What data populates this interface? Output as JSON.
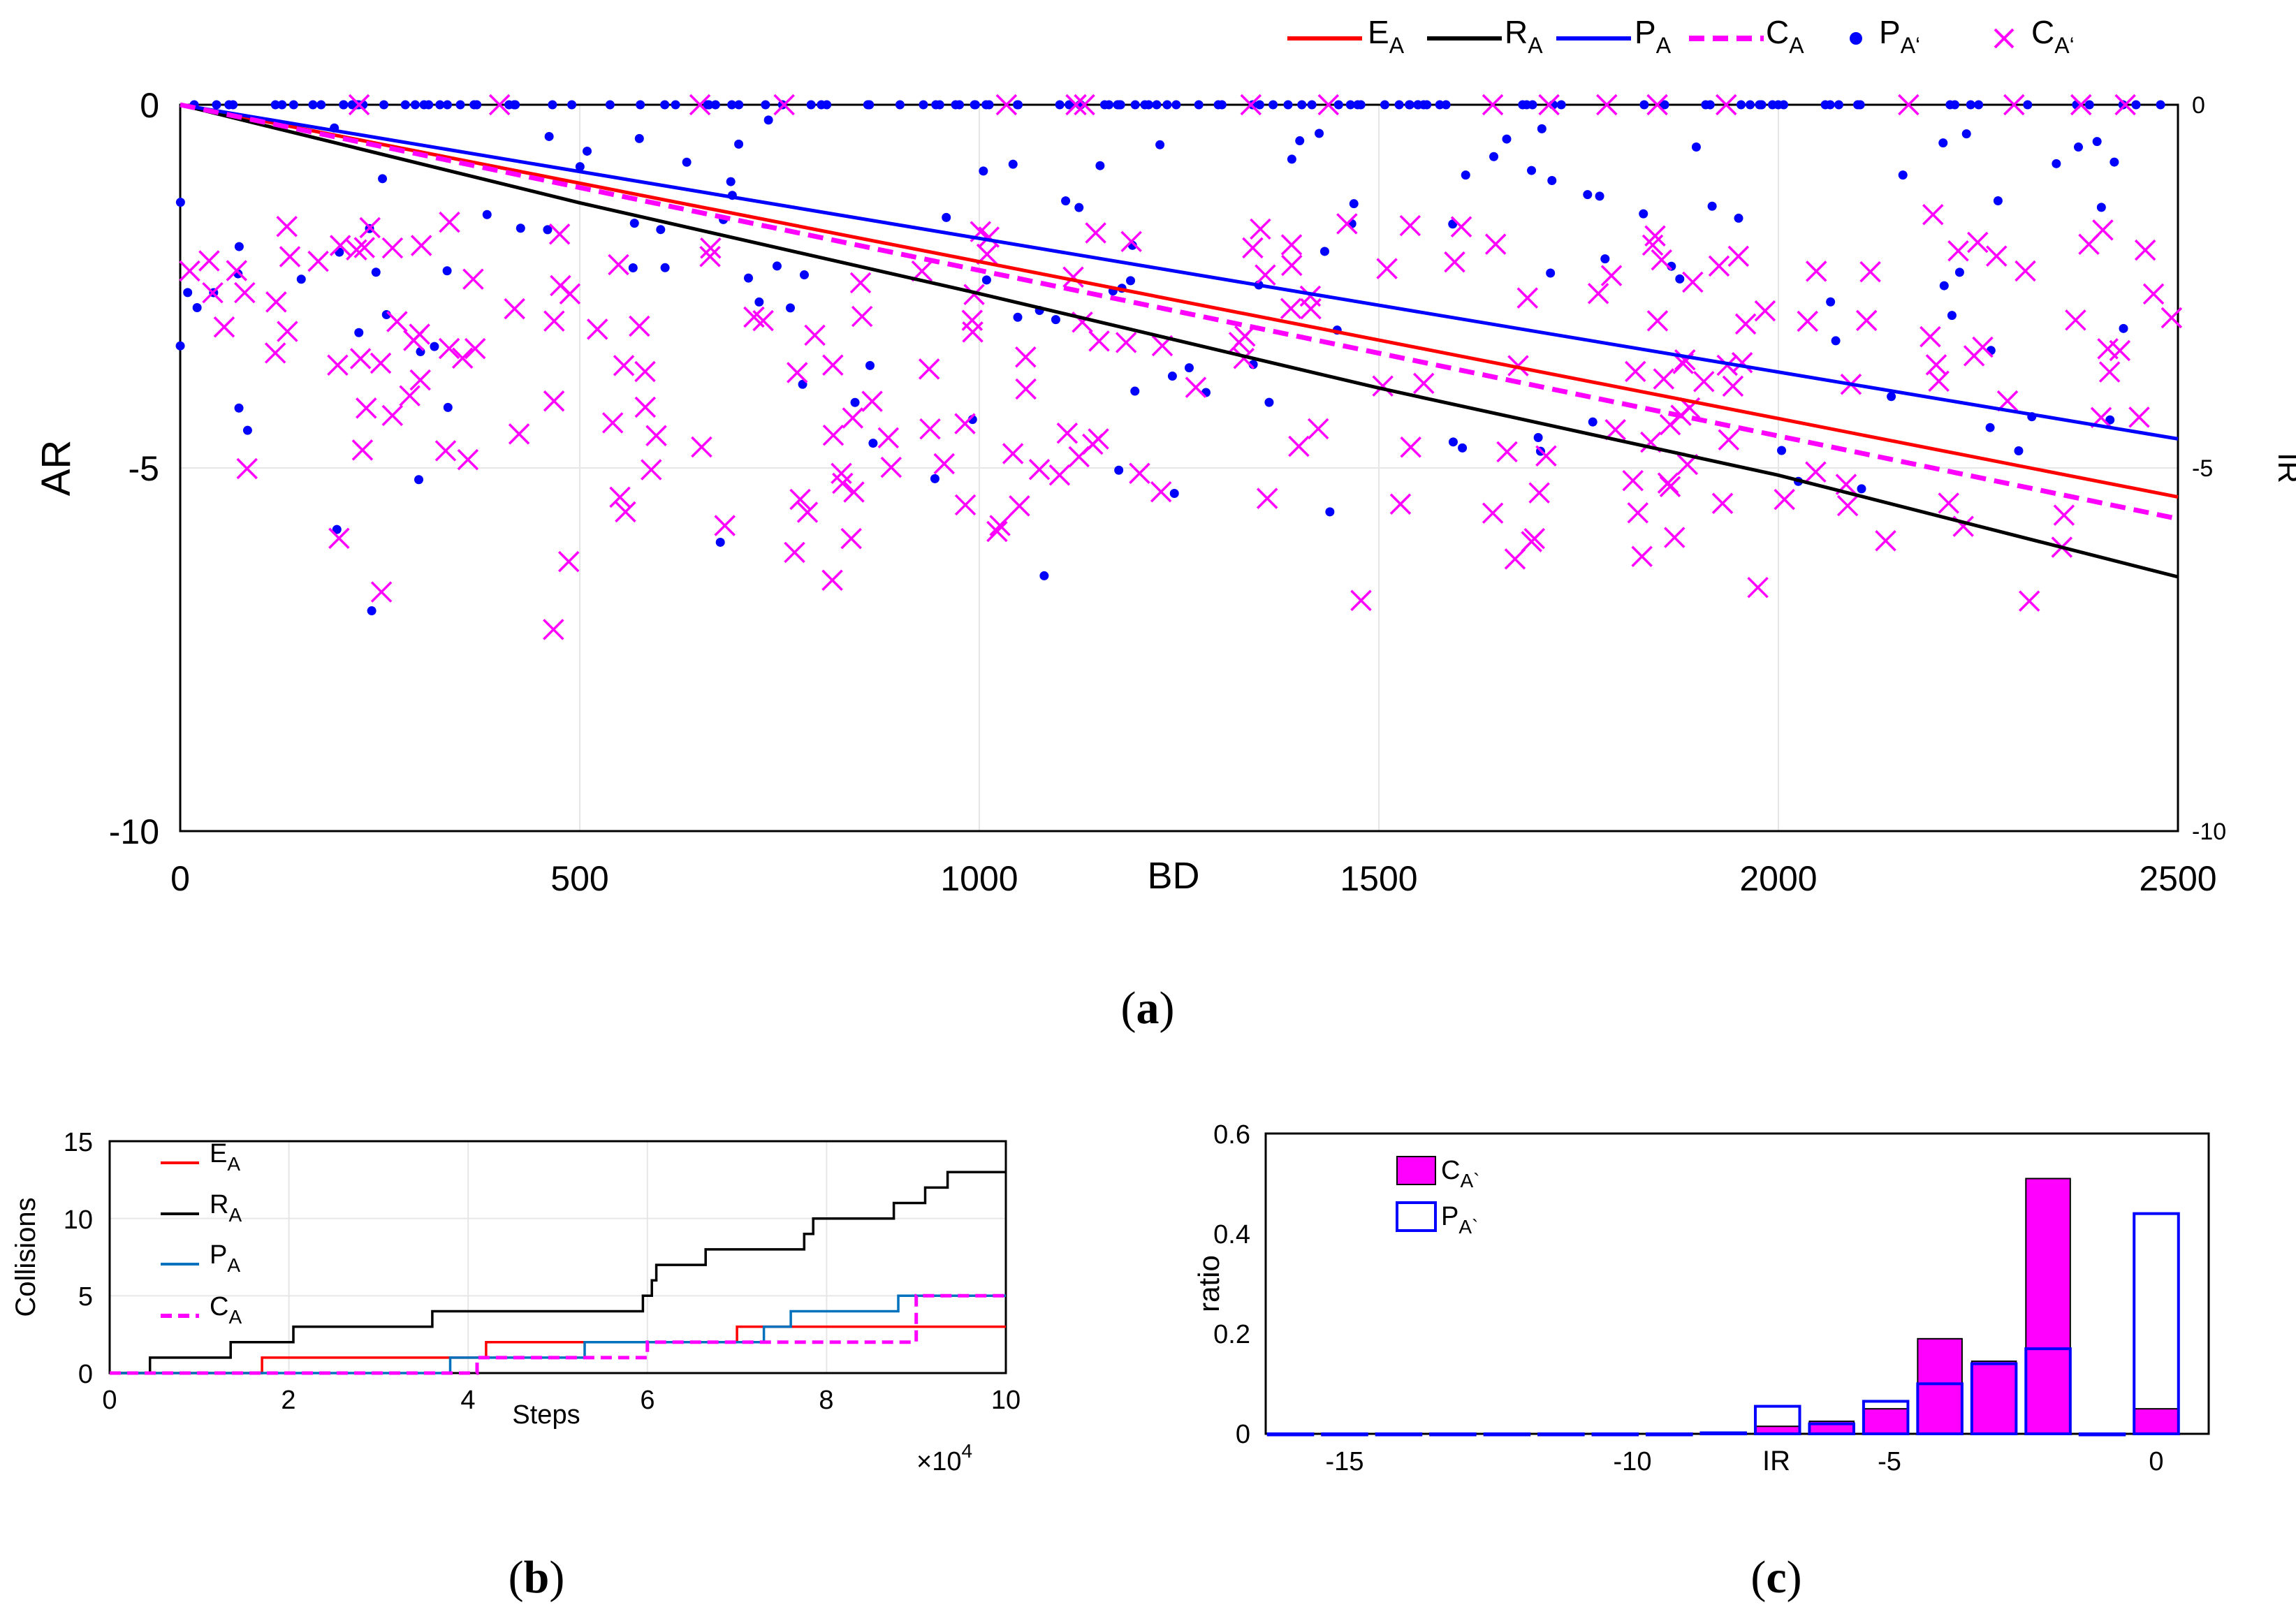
{
  "colors": {
    "E_A": "#ff0000",
    "R_A": "#000000",
    "P_A_a": "#0000ff",
    "C_A": "#ff00ff",
    "P_A_b": "#0072bd",
    "grid": "#e6e6e6"
  },
  "chart_data": [
    {
      "id": "a",
      "type": "line+scatter",
      "caption": "a",
      "xlabel": "BD",
      "ylabel": "AR",
      "y2label": "IR",
      "xlim": [
        0,
        2500
      ],
      "ylim": [
        -10,
        0
      ],
      "y2lim": [
        -10,
        0
      ],
      "xticks": [
        "0",
        "500",
        "1000",
        "1500",
        "2000",
        "2500"
      ],
      "yticks": [
        "0",
        "-5",
        "-10"
      ],
      "y2ticks": [
        "0",
        "-5",
        "-10"
      ],
      "grid": true,
      "legend": {
        "placement": "top",
        "entries": [
          {
            "base": "E",
            "sub": "A"
          },
          {
            "base": "R",
            "sub": "A"
          },
          {
            "base": "P",
            "sub": "A"
          },
          {
            "base": "C",
            "sub": "A"
          },
          {
            "base": "P",
            "sub": "A‘"
          },
          {
            "base": "C",
            "sub": "A‘"
          }
        ]
      },
      "series": [
        {
          "name": "E_A",
          "style": "line",
          "x": [
            0,
            2500
          ],
          "y": [
            0,
            -5.4
          ]
        },
        {
          "name": "R_A",
          "style": "line",
          "x": [
            0,
            500,
            1000,
            1500,
            2000,
            2500
          ],
          "y": [
            0,
            -1.35,
            -2.6,
            -3.9,
            -5.1,
            -6.5
          ]
        },
        {
          "name": "P_A",
          "style": "line",
          "x": [
            0,
            2500
          ],
          "y": [
            0,
            -4.6
          ]
        },
        {
          "name": "C_A",
          "style": "dashed",
          "x": [
            0,
            2500
          ],
          "y": [
            0,
            -5.7
          ]
        },
        {
          "name": "P_A‘",
          "style": "dots",
          "seed": 7,
          "count": 260,
          "zero_fraction": 0.45,
          "range": [
            -7.2,
            -0.2
          ]
        },
        {
          "name": "C_A‘",
          "style": "crosses",
          "seed": 13,
          "count": 240,
          "zero_fraction": 0.07,
          "range": [
            -7.6,
            -1.5
          ]
        }
      ]
    },
    {
      "id": "b",
      "type": "line",
      "caption": "b",
      "xlabel": "Steps",
      "ylabel": "Collisions",
      "x_multiplier": "×10",
      "x_multiplier_exp": "4",
      "xlim": [
        0,
        10
      ],
      "ylim": [
        0,
        15
      ],
      "xticks": [
        "0",
        "2",
        "4",
        "6",
        "8",
        "10"
      ],
      "yticks": [
        "0",
        "5",
        "10",
        "15"
      ],
      "grid": true,
      "legend": {
        "placement": "top-left",
        "entries": [
          {
            "base": "E",
            "sub": "A"
          },
          {
            "base": "R",
            "sub": "A"
          },
          {
            "base": "P",
            "sub": "A"
          },
          {
            "base": "C",
            "sub": "A"
          }
        ]
      },
      "series": [
        {
          "name": "E_A",
          "style": "step",
          "x": [
            0,
            1.7,
            4.2,
            7.0,
            10
          ],
          "y": [
            0,
            1,
            2,
            3,
            3
          ]
        },
        {
          "name": "R_A",
          "style": "step",
          "x": [
            0,
            0.45,
            1.35,
            2.05,
            3.6,
            5.95,
            6.05,
            6.1,
            6.65,
            7.75,
            7.85,
            8.75,
            9.1,
            9.35,
            10
          ],
          "y": [
            0,
            1,
            2,
            3,
            4,
            5,
            6,
            7,
            8,
            9,
            10,
            11,
            12,
            13,
            13
          ]
        },
        {
          "name": "P_A",
          "style": "step",
          "x": [
            0,
            3.8,
            5.3,
            7.3,
            7.6,
            8.8,
            10
          ],
          "y": [
            0,
            1,
            2,
            3,
            4,
            5,
            5
          ]
        },
        {
          "name": "C_A",
          "style": "dashed-step",
          "x": [
            0,
            4.1,
            6.0,
            9.0,
            10
          ],
          "y": [
            0,
            1,
            2,
            5,
            5
          ]
        }
      ]
    },
    {
      "id": "c",
      "type": "bar",
      "caption": "c",
      "xlabel": "IR",
      "ylabel": "ratio",
      "xlim": [
        -17,
        1
      ],
      "ylim": [
        0,
        0.6
      ],
      "xticks": [
        "-15",
        "-10",
        "-5",
        "0"
      ],
      "yticks": [
        "0",
        "0.2",
        "0.4",
        "0.6"
      ],
      "legend": {
        "placement": "top-left",
        "entries": [
          {
            "base": "C",
            "sub": "A`"
          },
          {
            "base": "P",
            "sub": "A`"
          }
        ]
      },
      "categories": [
        -16,
        -15,
        -14,
        -13,
        -12,
        -11,
        -10,
        -9,
        -8,
        -7,
        -6,
        -5,
        -4,
        -3,
        -2,
        -1,
        0
      ],
      "series": [
        {
          "name": "C_A`",
          "style": "filled",
          "values": [
            0,
            0,
            0,
            0,
            0,
            0,
            0,
            0,
            0.003,
            0.015,
            0.025,
            0.05,
            0.19,
            0.145,
            0.51,
            0,
            0.05
          ]
        },
        {
          "name": "P_A`",
          "style": "outline",
          "values": [
            0,
            0,
            0,
            0,
            0,
            0,
            0,
            0,
            0.002,
            0.055,
            0.02,
            0.065,
            0.1,
            0.14,
            0.17,
            0,
            0.44
          ]
        }
      ]
    }
  ]
}
